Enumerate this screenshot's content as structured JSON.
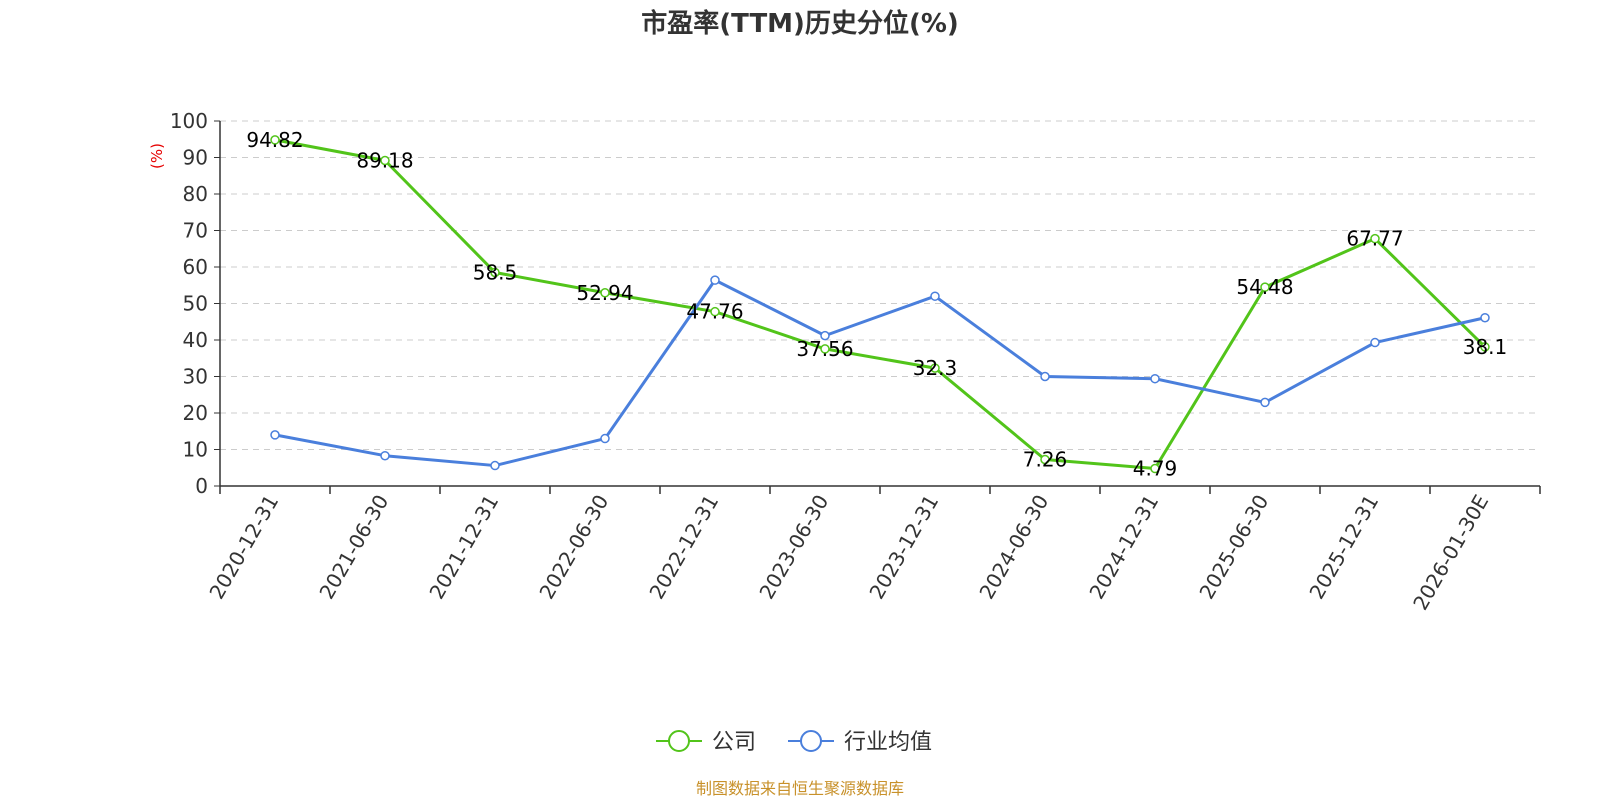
{
  "chart_data": {
    "type": "line",
    "title": "市盈率(TTM)历史分位(%)",
    "unit_label": "(%)",
    "categories": [
      "2020-12-31",
      "2021-06-30",
      "2021-12-31",
      "2022-06-30",
      "2022-12-31",
      "2023-06-30",
      "2023-12-31",
      "2024-06-30",
      "2024-12-31",
      "2025-06-30",
      "2025-12-31",
      "2026-01-30E"
    ],
    "ylim": [
      0,
      100
    ],
    "yticks": [
      0,
      10,
      20,
      30,
      40,
      50,
      60,
      70,
      80,
      90,
      100
    ],
    "grid": true,
    "legend_position": "bottom",
    "series": [
      {
        "name": "公司",
        "color": "#52c41a",
        "values": [
          94.82,
          89.18,
          58.5,
          52.94,
          47.76,
          37.56,
          32.3,
          7.26,
          4.79,
          54.48,
          67.77,
          38.1
        ],
        "labels": [
          "94.82",
          "89.18",
          "58.5",
          "52.94",
          "47.76",
          "37.56",
          "32.3",
          "7.26",
          "4.79",
          "54.48",
          "67.77",
          "38.1"
        ]
      },
      {
        "name": "行业均值",
        "color": "#4a7fdc",
        "values": [
          14,
          8.3,
          5.6,
          13,
          56.4,
          41.2,
          52,
          30,
          29.4,
          22.9,
          39.3,
          46.1
        ]
      }
    ]
  },
  "footer": {
    "source": "制图数据来自恒生聚源数据库"
  }
}
